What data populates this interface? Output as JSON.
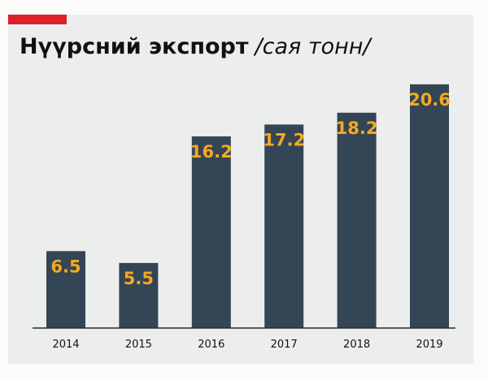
{
  "chart_data": {
    "type": "bar",
    "title": "Нүүрсний экспорт",
    "unit": "/сая тонн/",
    "categories": [
      "2014",
      "2015",
      "2016",
      "2017",
      "2018",
      "2019"
    ],
    "values": [
      6.5,
      5.5,
      16.2,
      17.2,
      18.2,
      20.6
    ],
    "value_labels": [
      "6.5",
      "5.5",
      "16.2",
      "17.2",
      "18.2",
      "20.6"
    ],
    "xlabel": "",
    "ylabel": "",
    "ylim": [
      0,
      21
    ],
    "grid": false,
    "bar_color": "#344555",
    "label_color": "#f6a821",
    "accent_color": "#dc2229"
  }
}
